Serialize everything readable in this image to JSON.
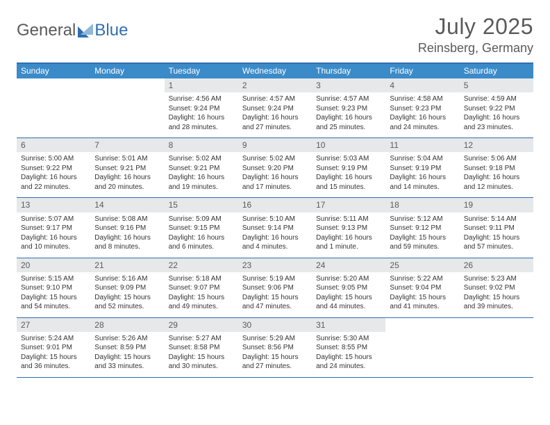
{
  "brand": {
    "part1": "General",
    "part2": "Blue"
  },
  "title": "July 2025",
  "location": "Reinsberg, Germany",
  "colors": {
    "header_bar": "#3b8bc9",
    "rule": "#2f6fb0",
    "daynum_bg": "#e7e8ea",
    "text": "#333333",
    "muted": "#5a5a5a"
  },
  "typography": {
    "title_fontsize": 32,
    "location_fontsize": 18,
    "dow_fontsize": 12,
    "body_fontsize": 10
  },
  "days_of_week": [
    "Sunday",
    "Monday",
    "Tuesday",
    "Wednesday",
    "Thursday",
    "Friday",
    "Saturday"
  ],
  "weeks": [
    [
      null,
      null,
      {
        "n": "1",
        "sunrise": "4:56 AM",
        "sunset": "9:24 PM",
        "daylight": "16 hours and 28 minutes."
      },
      {
        "n": "2",
        "sunrise": "4:57 AM",
        "sunset": "9:24 PM",
        "daylight": "16 hours and 27 minutes."
      },
      {
        "n": "3",
        "sunrise": "4:57 AM",
        "sunset": "9:23 PM",
        "daylight": "16 hours and 25 minutes."
      },
      {
        "n": "4",
        "sunrise": "4:58 AM",
        "sunset": "9:23 PM",
        "daylight": "16 hours and 24 minutes."
      },
      {
        "n": "5",
        "sunrise": "4:59 AM",
        "sunset": "9:22 PM",
        "daylight": "16 hours and 23 minutes."
      }
    ],
    [
      {
        "n": "6",
        "sunrise": "5:00 AM",
        "sunset": "9:22 PM",
        "daylight": "16 hours and 22 minutes."
      },
      {
        "n": "7",
        "sunrise": "5:01 AM",
        "sunset": "9:21 PM",
        "daylight": "16 hours and 20 minutes."
      },
      {
        "n": "8",
        "sunrise": "5:02 AM",
        "sunset": "9:21 PM",
        "daylight": "16 hours and 19 minutes."
      },
      {
        "n": "9",
        "sunrise": "5:02 AM",
        "sunset": "9:20 PM",
        "daylight": "16 hours and 17 minutes."
      },
      {
        "n": "10",
        "sunrise": "5:03 AM",
        "sunset": "9:19 PM",
        "daylight": "16 hours and 15 minutes."
      },
      {
        "n": "11",
        "sunrise": "5:04 AM",
        "sunset": "9:19 PM",
        "daylight": "16 hours and 14 minutes."
      },
      {
        "n": "12",
        "sunrise": "5:06 AM",
        "sunset": "9:18 PM",
        "daylight": "16 hours and 12 minutes."
      }
    ],
    [
      {
        "n": "13",
        "sunrise": "5:07 AM",
        "sunset": "9:17 PM",
        "daylight": "16 hours and 10 minutes."
      },
      {
        "n": "14",
        "sunrise": "5:08 AM",
        "sunset": "9:16 PM",
        "daylight": "16 hours and 8 minutes."
      },
      {
        "n": "15",
        "sunrise": "5:09 AM",
        "sunset": "9:15 PM",
        "daylight": "16 hours and 6 minutes."
      },
      {
        "n": "16",
        "sunrise": "5:10 AM",
        "sunset": "9:14 PM",
        "daylight": "16 hours and 4 minutes."
      },
      {
        "n": "17",
        "sunrise": "5:11 AM",
        "sunset": "9:13 PM",
        "daylight": "16 hours and 1 minute."
      },
      {
        "n": "18",
        "sunrise": "5:12 AM",
        "sunset": "9:12 PM",
        "daylight": "15 hours and 59 minutes."
      },
      {
        "n": "19",
        "sunrise": "5:14 AM",
        "sunset": "9:11 PM",
        "daylight": "15 hours and 57 minutes."
      }
    ],
    [
      {
        "n": "20",
        "sunrise": "5:15 AM",
        "sunset": "9:10 PM",
        "daylight": "15 hours and 54 minutes."
      },
      {
        "n": "21",
        "sunrise": "5:16 AM",
        "sunset": "9:09 PM",
        "daylight": "15 hours and 52 minutes."
      },
      {
        "n": "22",
        "sunrise": "5:18 AM",
        "sunset": "9:07 PM",
        "daylight": "15 hours and 49 minutes."
      },
      {
        "n": "23",
        "sunrise": "5:19 AM",
        "sunset": "9:06 PM",
        "daylight": "15 hours and 47 minutes."
      },
      {
        "n": "24",
        "sunrise": "5:20 AM",
        "sunset": "9:05 PM",
        "daylight": "15 hours and 44 minutes."
      },
      {
        "n": "25",
        "sunrise": "5:22 AM",
        "sunset": "9:04 PM",
        "daylight": "15 hours and 41 minutes."
      },
      {
        "n": "26",
        "sunrise": "5:23 AM",
        "sunset": "9:02 PM",
        "daylight": "15 hours and 39 minutes."
      }
    ],
    [
      {
        "n": "27",
        "sunrise": "5:24 AM",
        "sunset": "9:01 PM",
        "daylight": "15 hours and 36 minutes."
      },
      {
        "n": "28",
        "sunrise": "5:26 AM",
        "sunset": "8:59 PM",
        "daylight": "15 hours and 33 minutes."
      },
      {
        "n": "29",
        "sunrise": "5:27 AM",
        "sunset": "8:58 PM",
        "daylight": "15 hours and 30 minutes."
      },
      {
        "n": "30",
        "sunrise": "5:29 AM",
        "sunset": "8:56 PM",
        "daylight": "15 hours and 27 minutes."
      },
      {
        "n": "31",
        "sunrise": "5:30 AM",
        "sunset": "8:55 PM",
        "daylight": "15 hours and 24 minutes."
      },
      null,
      null
    ]
  ],
  "labels": {
    "sunrise": "Sunrise: ",
    "sunset": "Sunset: ",
    "daylight": "Daylight: "
  }
}
